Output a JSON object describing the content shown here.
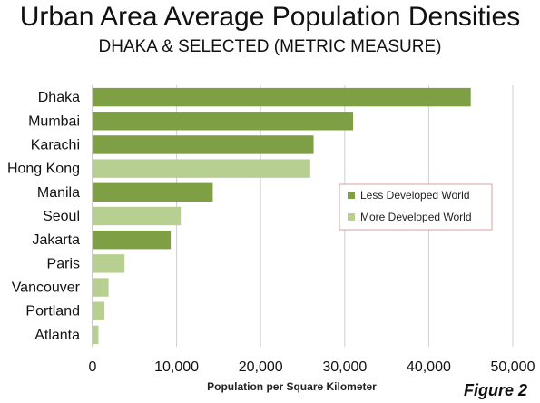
{
  "chart_data": {
    "type": "bar",
    "orientation": "horizontal",
    "title": "Urban Area Average Population Densities",
    "subtitle": "DHAKA & SELECTED (METRIC MEASURE)",
    "xlabel": "Population per Square Kilometer",
    "ylabel": "",
    "xlim": [
      0,
      50000
    ],
    "xticks": [
      0,
      10000,
      20000,
      30000,
      40000,
      50000
    ],
    "xtick_labels": [
      "0",
      "10,000",
      "20,000",
      "30,000",
      "40,000",
      "50,000"
    ],
    "grid": "vertical",
    "legend_position": "right-center",
    "categories": [
      "Dhaka",
      "Mumbai",
      "Karachi",
      "Hong Kong",
      "Manila",
      "Seoul",
      "Jakarta",
      "Paris",
      "Vancouver",
      "Portland",
      "Atlanta"
    ],
    "values": [
      45000,
      31000,
      26300,
      25900,
      14300,
      10500,
      9300,
      3800,
      1900,
      1400,
      700
    ],
    "groups": [
      "less",
      "less",
      "less",
      "more",
      "less",
      "more",
      "less",
      "more",
      "more",
      "more",
      "more"
    ],
    "series": [
      {
        "key": "less",
        "name": "Less Developed World",
        "color": "#7f9f45"
      },
      {
        "key": "more",
        "name": "More Developed World",
        "color": "#b8cf92"
      }
    ]
  },
  "figure_label": "Figure 2"
}
